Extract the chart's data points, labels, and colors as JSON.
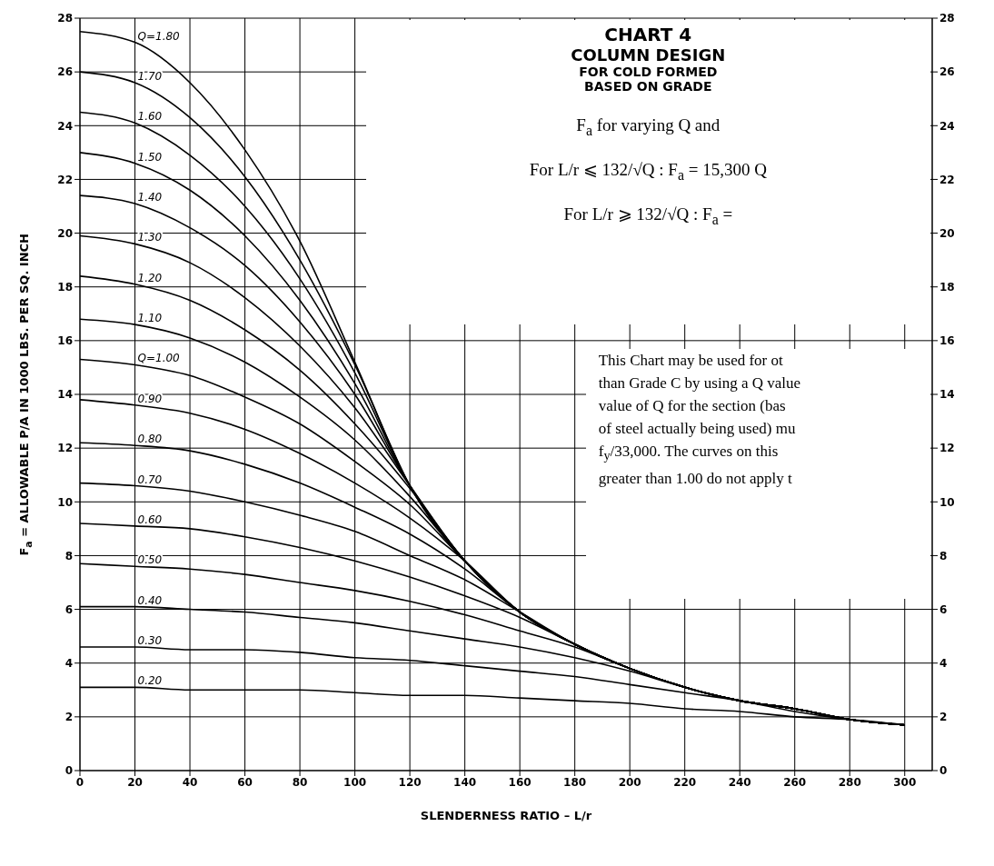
{
  "chart_data": {
    "type": "line",
    "title": "CHART 4",
    "subtitle": "COLUMN DESIGN",
    "xlabel": "SLENDERNESS RATIO – L/r",
    "ylabel": "F$_{a}$ = ALLOWABLE P/A IN 1000 LBS. PER SQ. INCH",
    "x": [
      0,
      20,
      40,
      60,
      80,
      100,
      120,
      140,
      160,
      180,
      200,
      220,
      240,
      260,
      280,
      300
    ],
    "series": [
      {
        "name": "Q=1.80",
        "color": "#000000",
        "values": [
          27.5,
          27.1,
          25.6,
          23.1,
          19.7,
          15.2,
          10.6,
          7.8,
          5.9,
          4.7,
          3.8,
          3.1,
          2.6,
          2.3,
          1.9,
          1.7
        ]
      },
      {
        "name": "1.70",
        "color": "#000000",
        "values": [
          26.0,
          25.6,
          24.3,
          22.1,
          19.0,
          15.1,
          10.6,
          7.8,
          5.9,
          4.7,
          3.8,
          3.1,
          2.6,
          2.3,
          1.9,
          1.7
        ]
      },
      {
        "name": "1.60",
        "color": "#000000",
        "values": [
          24.5,
          24.1,
          22.9,
          21.0,
          18.3,
          14.8,
          10.6,
          7.8,
          5.9,
          4.7,
          3.8,
          3.1,
          2.6,
          2.3,
          1.9,
          1.7
        ]
      },
      {
        "name": "1.50",
        "color": "#000000",
        "values": [
          23.0,
          22.6,
          21.6,
          19.9,
          17.5,
          14.4,
          10.6,
          7.8,
          5.9,
          4.7,
          3.8,
          3.1,
          2.6,
          2.3,
          1.9,
          1.7
        ]
      },
      {
        "name": "1.40",
        "color": "#000000",
        "values": [
          21.4,
          21.1,
          20.2,
          18.8,
          16.7,
          14.0,
          10.6,
          7.8,
          5.9,
          4.7,
          3.8,
          3.1,
          2.6,
          2.3,
          1.9,
          1.7
        ]
      },
      {
        "name": "1.30",
        "color": "#000000",
        "values": [
          19.9,
          19.6,
          18.9,
          17.6,
          15.8,
          13.5,
          10.6,
          7.8,
          5.9,
          4.7,
          3.8,
          3.1,
          2.6,
          2.3,
          1.9,
          1.7
        ]
      },
      {
        "name": "1.20",
        "color": "#000000",
        "values": [
          18.4,
          18.1,
          17.5,
          16.4,
          14.9,
          12.9,
          10.5,
          7.8,
          5.9,
          4.7,
          3.8,
          3.1,
          2.6,
          2.3,
          1.9,
          1.7
        ]
      },
      {
        "name": "1.10",
        "color": "#000000",
        "values": [
          16.8,
          16.6,
          16.1,
          15.2,
          13.9,
          12.3,
          10.2,
          7.8,
          5.9,
          4.7,
          3.8,
          3.1,
          2.6,
          2.3,
          1.9,
          1.7
        ]
      },
      {
        "name": "Q=1.00",
        "color": "#000000",
        "values": [
          15.3,
          15.1,
          14.7,
          13.9,
          12.9,
          11.5,
          9.9,
          7.8,
          5.9,
          4.7,
          3.8,
          3.1,
          2.6,
          2.3,
          1.9,
          1.7
        ]
      },
      {
        "name": "0.90",
        "color": "#000000",
        "values": [
          13.8,
          13.6,
          13.3,
          12.7,
          11.8,
          10.7,
          9.4,
          7.8,
          5.9,
          4.7,
          3.8,
          3.1,
          2.6,
          2.3,
          1.9,
          1.7
        ]
      },
      {
        "name": "0.80",
        "color": "#000000",
        "values": [
          12.2,
          12.1,
          11.9,
          11.4,
          10.7,
          9.8,
          8.8,
          7.5,
          5.9,
          4.7,
          3.8,
          3.1,
          2.6,
          2.3,
          1.9,
          1.7
        ]
      },
      {
        "name": "0.70",
        "color": "#000000",
        "values": [
          10.7,
          10.6,
          10.4,
          10.0,
          9.5,
          8.9,
          8.0,
          7.1,
          5.9,
          4.7,
          3.8,
          3.1,
          2.6,
          2.3,
          1.9,
          1.7
        ]
      },
      {
        "name": "0.60",
        "color": "#000000",
        "values": [
          9.2,
          9.1,
          9.0,
          8.7,
          8.3,
          7.8,
          7.2,
          6.5,
          5.7,
          4.7,
          3.8,
          3.1,
          2.6,
          2.3,
          1.9,
          1.7
        ]
      },
      {
        "name": "0.50",
        "color": "#000000",
        "values": [
          7.7,
          7.6,
          7.5,
          7.3,
          7.0,
          6.7,
          6.3,
          5.8,
          5.2,
          4.6,
          3.8,
          3.1,
          2.6,
          2.3,
          1.9,
          1.7
        ]
      },
      {
        "name": "0.40",
        "color": "#000000",
        "values": [
          6.1,
          6.1,
          6.0,
          5.9,
          5.7,
          5.5,
          5.2,
          4.9,
          4.6,
          4.2,
          3.7,
          3.1,
          2.6,
          2.3,
          1.9,
          1.7
        ]
      },
      {
        "name": "0.30",
        "color": "#000000",
        "values": [
          4.6,
          4.6,
          4.5,
          4.5,
          4.4,
          4.2,
          4.1,
          3.9,
          3.7,
          3.5,
          3.2,
          2.9,
          2.6,
          2.2,
          1.9,
          1.7
        ]
      },
      {
        "name": "0.20",
        "color": "#000000",
        "values": [
          3.1,
          3.1,
          3.0,
          3.0,
          3.0,
          2.9,
          2.8,
          2.8,
          2.7,
          2.6,
          2.5,
          2.3,
          2.2,
          2.0,
          1.9,
          1.7
        ]
      }
    ],
    "xlim": [
      0,
      310
    ],
    "xticks": [
      0,
      20,
      40,
      60,
      80,
      100,
      120,
      140,
      160,
      180,
      200,
      220,
      240,
      260,
      280,
      300
    ],
    "ylim": [
      0,
      28
    ],
    "yticks": [
      0,
      2,
      4,
      6,
      8,
      10,
      12,
      14,
      16,
      18,
      20,
      22,
      24,
      26,
      28
    ],
    "y2lim": [
      0,
      28
    ],
    "y2ticks": [
      0,
      2,
      4,
      6,
      8,
      10,
      12,
      14,
      16,
      18,
      20,
      22,
      24,
      26,
      28
    ],
    "grid": true,
    "legend": false,
    "marker": "none",
    "line_style": "solid",
    "annotations": [
      "FOR COLD FORMED",
      "BASED ON GRADE",
      "F$_{a}$ for varying Q and",
      "For L/r ⩽ 132/√Q : F$_{a}$ = 15,300 Q",
      "For L/r ⩾ 132/√Q :    F$_{a}$ =",
      "This Chart may be used for ot",
      "than Grade C by using a Q value",
      "value of Q for the section (bas",
      "of steel actually being used) mu",
      "f$_{y}$/33,000. The curves on this",
      "greater than 1.00 do not apply t"
    ]
  }
}
